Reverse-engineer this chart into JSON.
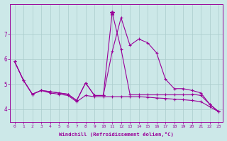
{
  "xlabel": "Windchill (Refroidissement éolien,°C)",
  "x": [
    0,
    1,
    2,
    3,
    4,
    5,
    6,
    7,
    8,
    9,
    10,
    11,
    12,
    13,
    14,
    15,
    16,
    17,
    18,
    19,
    20,
    21,
    22,
    23
  ],
  "line1": [
    5.9,
    5.15,
    4.6,
    4.75,
    4.7,
    4.65,
    4.6,
    4.35,
    5.05,
    4.55,
    4.55,
    7.85,
    6.4,
    4.6,
    4.6,
    4.6,
    4.6,
    4.6,
    4.6,
    4.6,
    4.6,
    4.55,
    4.2,
    3.9
  ],
  "line2": [
    5.9,
    5.15,
    4.6,
    4.75,
    4.7,
    4.65,
    4.6,
    4.35,
    5.05,
    4.55,
    4.55,
    6.3,
    7.65,
    6.55,
    6.8,
    6.65,
    6.25,
    5.2,
    4.82,
    4.82,
    4.75,
    4.65,
    4.2,
    3.9
  ],
  "line3": [
    5.9,
    5.15,
    4.6,
    4.75,
    4.65,
    4.6,
    4.55,
    4.3,
    4.55,
    4.5,
    4.5,
    4.5,
    4.5,
    4.5,
    4.5,
    4.48,
    4.45,
    4.43,
    4.4,
    4.38,
    4.35,
    4.3,
    4.1,
    3.9
  ],
  "bg_color": "#cce8e8",
  "line_color": "#990099",
  "grid_color": "#aacccc",
  "ylim": [
    3.5,
    8.2
  ],
  "yticks": [
    4,
    5,
    6,
    7
  ],
  "linewidth": 0.8
}
